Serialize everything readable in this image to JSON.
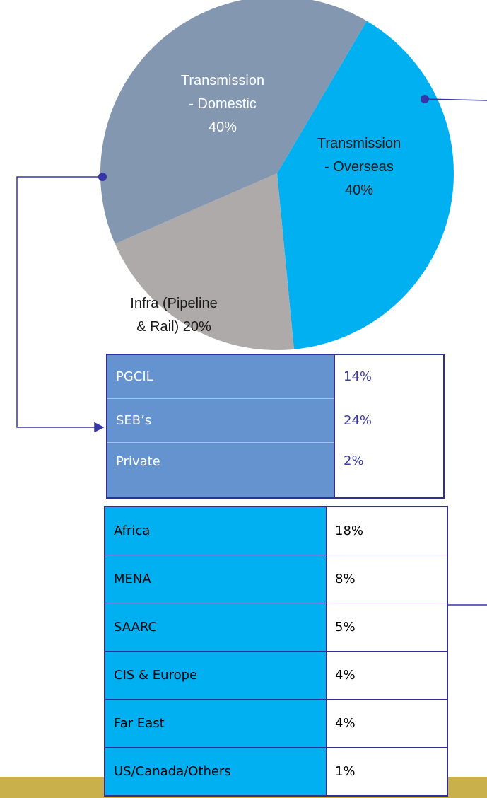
{
  "chart_data": {
    "type": "pie",
    "categories": [
      "Transmission - Overseas",
      "Infra (Pipeline & Rail)",
      "Transmission - Domestic"
    ],
    "values": [
      40,
      20,
      40
    ],
    "value_labels": [
      "40%",
      "20%",
      "40%"
    ],
    "colors": [
      "#00b0f0",
      "#aeaaaa",
      "#8497b0"
    ]
  },
  "tables": [
    {
      "rows": [
        [
          "PGCIL",
          "14%"
        ],
        [
          "SEB’s",
          "24%"
        ],
        [
          "Private",
          "2%"
        ]
      ]
    },
    {
      "rows": [
        [
          "Africa",
          "18%"
        ],
        [
          "MENA",
          "8%"
        ],
        [
          "SAARC",
          "5%"
        ],
        [
          "CIS & Europe",
          "4%"
        ],
        [
          "Far East",
          "4%"
        ],
        [
          "US/Canada/Others",
          "1%"
        ]
      ]
    }
  ]
}
